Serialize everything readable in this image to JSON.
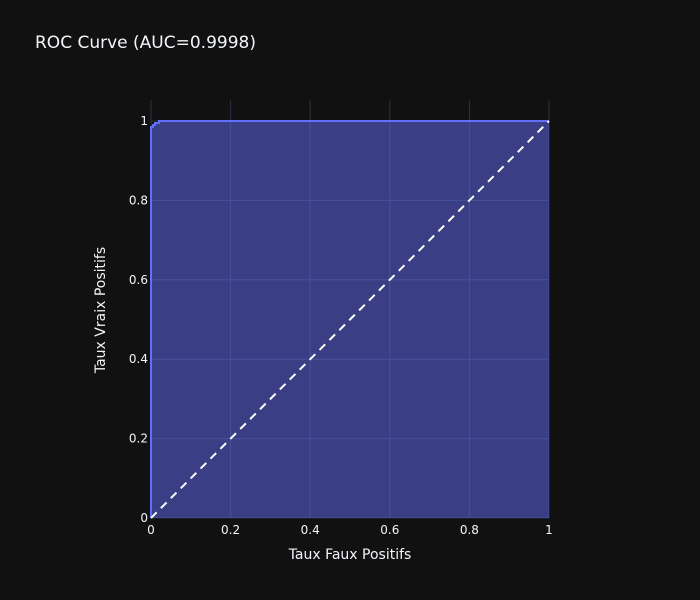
{
  "chart_data": {
    "type": "area",
    "title": "ROC Curve (AUC=0.9998)",
    "xlabel": "Taux Faux Positifs",
    "ylabel": "Taux Vraix Positifs",
    "xlim": [
      0,
      1
    ],
    "ylim": [
      0,
      1
    ],
    "x_ticks": [
      "0",
      "0.2",
      "0.4",
      "0.6",
      "0.8",
      "1"
    ],
    "y_ticks": [
      "0",
      "0.2",
      "0.4",
      "0.6",
      "0.8",
      "1"
    ],
    "grid": true,
    "series": [
      {
        "type": "area",
        "x": [
          0,
          0,
          0.005,
          0.005,
          0.01,
          0.01,
          0.02,
          0.02,
          1
        ],
        "y": [
          0,
          0.985,
          0.985,
          0.99,
          0.99,
          0.995,
          0.995,
          1,
          1
        ],
        "line_color": "#636efa",
        "fill_color": "rgba(99,110,250,0.5)"
      },
      {
        "type": "line",
        "style": "dash",
        "x": [
          0,
          1
        ],
        "y": [
          0,
          1
        ],
        "color": "#ffffff"
      }
    ],
    "background": "#111111",
    "grid_color": "#283442"
  }
}
